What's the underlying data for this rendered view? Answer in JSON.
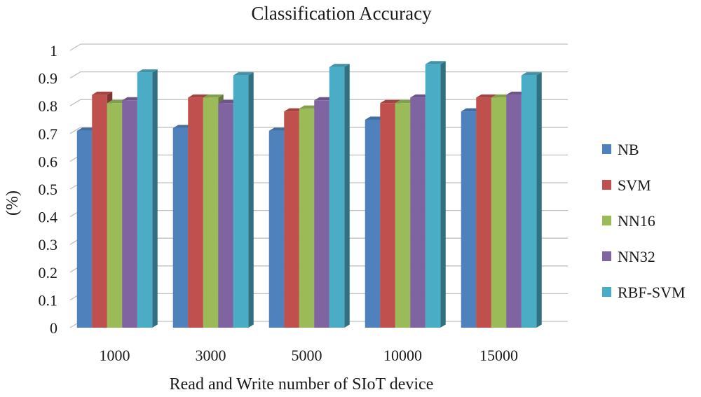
{
  "chart_data": {
    "type": "bar",
    "title": "Classification Accuracy",
    "xlabel": "Read and Write number of SIoT device",
    "ylabel": "(%)",
    "categories": [
      "1000",
      "3000",
      "5000",
      "10000",
      "15000"
    ],
    "ylim": [
      0,
      1
    ],
    "yticks": [
      "0",
      "0.1",
      "0.2",
      "0.3",
      "0.4",
      "0.5",
      "0.6",
      "0.7",
      "0.8",
      "0.9",
      "1"
    ],
    "grid": true,
    "legend": "right",
    "series": [
      {
        "name": "NB",
        "color": "#4f81bd",
        "values": [
          0.71,
          0.72,
          0.71,
          0.75,
          0.78
        ]
      },
      {
        "name": "SVM",
        "color": "#c0504d",
        "values": [
          0.84,
          0.83,
          0.78,
          0.81,
          0.83
        ]
      },
      {
        "name": "NN16",
        "color": "#9bbb59",
        "values": [
          0.81,
          0.83,
          0.79,
          0.81,
          0.83
        ]
      },
      {
        "name": "NN32",
        "color": "#8064a2",
        "values": [
          0.82,
          0.81,
          0.82,
          0.83,
          0.84
        ]
      },
      {
        "name": "RBF-SVM",
        "color": "#4bacc6",
        "values": [
          0.92,
          0.91,
          0.94,
          0.95,
          0.91
        ]
      }
    ]
  }
}
